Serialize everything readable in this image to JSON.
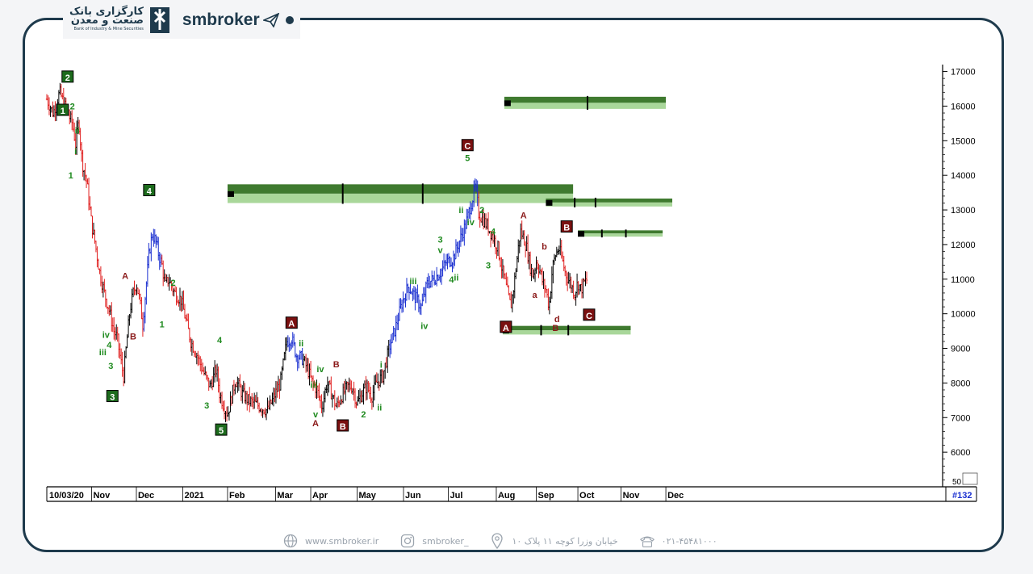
{
  "header": {
    "bank_name_fa": "کارگزاری بانک",
    "bank_name_fa2": "صنعت و معدن",
    "bank_name_en": "Bank of Industry & Mine Securities",
    "brand": "smbroker",
    "brand_icon": "paper-plane-icon"
  },
  "footer": {
    "website": "www.smbroker.ir",
    "instagram": "smbroker_",
    "address": "خیابان وزرا کوچه ۱۱ پلاک ۱۰",
    "phone": "۰۲۱-۴۵۴۸۱۰۰۰"
  },
  "colors": {
    "frame": "#1e3a4c",
    "up_candle": "#000000",
    "down_candle": "#e02020",
    "blue_candle": "#1a2fd0",
    "zone_dark": "#3f7a2f",
    "zone_light": "#a9d79a",
    "label_green": "#1f8a1f",
    "label_red": "#8b1a1a"
  },
  "chart_data": {
    "type": "candlestick",
    "title": "",
    "xlabel": "",
    "ylabel": "",
    "ylim": [
      5000,
      17200
    ],
    "y_ticks": [
      6000,
      7000,
      8000,
      9000,
      10000,
      11000,
      12000,
      13000,
      14000,
      15000,
      16000,
      17000
    ],
    "y_tick_labels": [
      "6000",
      "7000",
      "8000",
      "9000",
      "10000",
      "11000",
      "12000",
      "13000",
      "14000",
      "15000",
      "16000",
      "17000"
    ],
    "y_bottom_label": "50",
    "x_start_label": "10/03/20",
    "x_labels": [
      "Nov",
      "Dec",
      "2021",
      "Feb",
      "Mar",
      "Apr",
      "May",
      "Jun",
      "Jul",
      "Aug",
      "Sep",
      "Oct",
      "Nov",
      "Dec"
    ],
    "x_label_days": [
      29,
      57,
      86,
      114,
      144,
      166,
      195,
      224,
      252,
      282,
      307,
      333,
      360,
      388
    ],
    "x_range_days": [
      0,
      560
    ],
    "corner_label": "#132",
    "price_path": [
      [
        0,
        16200
      ],
      [
        4,
        15800
      ],
      [
        8,
        16400
      ],
      [
        12,
        15900
      ],
      [
        16,
        15500
      ],
      [
        18,
        14900
      ],
      [
        20,
        15600
      ],
      [
        22,
        14400
      ],
      [
        25,
        13800
      ],
      [
        28,
        12600
      ],
      [
        30,
        12100
      ],
      [
        33,
        11200
      ],
      [
        36,
        10600
      ],
      [
        39,
        10100
      ],
      [
        42,
        9500
      ],
      [
        44,
        9300
      ],
      [
        46,
        8700
      ],
      [
        48,
        8200
      ],
      [
        50,
        9200
      ],
      [
        52,
        10100
      ],
      [
        54,
        10600
      ],
      [
        56,
        10900
      ],
      [
        58,
        10400
      ],
      [
        60,
        9700
      ],
      [
        64,
        11800
      ],
      [
        66,
        12300
      ],
      [
        68,
        12100
      ],
      [
        70,
        11700
      ],
      [
        72,
        11400
      ],
      [
        74,
        10800
      ],
      [
        76,
        11000
      ],
      [
        80,
        10600
      ],
      [
        84,
        10400
      ],
      [
        86,
        10000
      ],
      [
        90,
        9200
      ],
      [
        94,
        8800
      ],
      [
        98,
        8300
      ],
      [
        102,
        7900
      ],
      [
        106,
        8400
      ],
      [
        108,
        7700
      ],
      [
        111,
        7300
      ],
      [
        113,
        7100
      ],
      [
        116,
        7700
      ],
      [
        118,
        8100
      ],
      [
        122,
        7700
      ],
      [
        126,
        7500
      ],
      [
        130,
        7400
      ],
      [
        134,
        7300
      ],
      [
        138,
        7200
      ],
      [
        142,
        7600
      ],
      [
        146,
        8000
      ],
      [
        150,
        9200
      ],
      [
        153,
        9300
      ],
      [
        156,
        8800
      ],
      [
        160,
        8700
      ],
      [
        163,
        8400
      ],
      [
        166,
        8000
      ],
      [
        169,
        7800
      ],
      [
        172,
        7300
      ],
      [
        175,
        8000
      ],
      [
        178,
        7700
      ],
      [
        181,
        7300
      ],
      [
        184,
        7600
      ],
      [
        188,
        7900
      ],
      [
        191,
        7900
      ],
      [
        194,
        7400
      ],
      [
        197,
        7700
      ],
      [
        200,
        7900
      ],
      [
        203,
        7600
      ],
      [
        206,
        8000
      ],
      [
        210,
        8200
      ],
      [
        214,
        9000
      ],
      [
        218,
        9600
      ],
      [
        222,
        10300
      ],
      [
        226,
        10800
      ],
      [
        230,
        10500
      ],
      [
        234,
        10200
      ],
      [
        238,
        10900
      ],
      [
        242,
        11000
      ],
      [
        246,
        11200
      ],
      [
        250,
        11500
      ],
      [
        254,
        11600
      ],
      [
        258,
        12100
      ],
      [
        262,
        12600
      ],
      [
        266,
        13300
      ],
      [
        268,
        13700
      ],
      [
        270,
        12900
      ],
      [
        273,
        12700
      ],
      [
        276,
        12500
      ],
      [
        279,
        12200
      ],
      [
        282,
        11900
      ],
      [
        284,
        11400
      ],
      [
        286,
        11000
      ],
      [
        288,
        10600
      ],
      [
        290,
        10200
      ],
      [
        292,
        10800
      ],
      [
        294,
        11600
      ],
      [
        296,
        12400
      ],
      [
        298,
        12200
      ],
      [
        300,
        11900
      ],
      [
        302,
        11400
      ],
      [
        304,
        11100
      ],
      [
        306,
        11500
      ],
      [
        308,
        11300
      ],
      [
        310,
        10900
      ],
      [
        312,
        10700
      ],
      [
        314,
        10200
      ],
      [
        316,
        11300
      ],
      [
        318,
        11700
      ],
      [
        320,
        11900
      ],
      [
        322,
        11600
      ],
      [
        324,
        11200
      ],
      [
        326,
        11000
      ],
      [
        328,
        10800
      ],
      [
        330,
        10600
      ],
      [
        332,
        10900
      ],
      [
        334,
        10700
      ],
      [
        336,
        10900
      ],
      [
        338,
        11000
      ]
    ],
    "bands": [
      {
        "day_from": 113,
        "day_to": 329,
        "y_top": 13740,
        "y_bottom": 13200,
        "markers": [
          185,
          235
        ]
      },
      {
        "day_from": 286,
        "day_to": 387,
        "y_top": 16270,
        "y_bottom": 15920,
        "markers": [
          338
        ]
      },
      {
        "day_from": 312,
        "day_to": 391,
        "y_top": 13330,
        "y_bottom": 13100,
        "markers": [
          330,
          343
        ]
      },
      {
        "day_from": 332,
        "day_to": 385,
        "y_top": 12410,
        "y_bottom": 12230,
        "markers": [
          347,
          362
        ]
      },
      {
        "day_from": 285,
        "day_to": 365,
        "y_top": 9650,
        "y_bottom": 9400,
        "markers": [
          309,
          326
        ]
      }
    ],
    "labels": [
      {
        "text": "2",
        "day": 13,
        "y": 16830,
        "style": "box-green"
      },
      {
        "text": "1",
        "day": 10,
        "y": 15870,
        "style": "box-green"
      },
      {
        "text": "2",
        "day": 16,
        "y": 16000,
        "style": "green"
      },
      {
        "text": "ii",
        "day": 19,
        "y": 15300,
        "style": "green"
      },
      {
        "text": "i",
        "day": 18,
        "y": 14700,
        "style": "green"
      },
      {
        "text": "1",
        "day": 15,
        "y": 14000,
        "style": "green"
      },
      {
        "text": "4",
        "day": 64,
        "y": 13550,
        "style": "box-green"
      },
      {
        "text": "A",
        "day": 49,
        "y": 11100,
        "style": "red"
      },
      {
        "text": "B",
        "day": 54,
        "y": 9350,
        "style": "red"
      },
      {
        "text": "iv",
        "day": 37,
        "y": 9400,
        "style": "green"
      },
      {
        "text": "4",
        "day": 39,
        "y": 9100,
        "style": "green"
      },
      {
        "text": "iii",
        "day": 35,
        "y": 8900,
        "style": "green"
      },
      {
        "text": "3",
        "day": 40,
        "y": 8500,
        "style": "green"
      },
      {
        "text": "3",
        "day": 41,
        "y": 7600,
        "style": "box-green"
      },
      {
        "text": "1",
        "day": 72,
        "y": 9700,
        "style": "green"
      },
      {
        "text": "2",
        "day": 79,
        "y": 10900,
        "style": "green"
      },
      {
        "text": "4",
        "day": 108,
        "y": 9250,
        "style": "green"
      },
      {
        "text": "3",
        "day": 100,
        "y": 7360,
        "style": "green"
      },
      {
        "text": "5",
        "day": 109,
        "y": 6630,
        "style": "box-green"
      },
      {
        "text": "A",
        "day": 153,
        "y": 9720,
        "style": "box-red"
      },
      {
        "text": "ii",
        "day": 159,
        "y": 9150,
        "style": "green"
      },
      {
        "text": "iv",
        "day": 171,
        "y": 8400,
        "style": "green"
      },
      {
        "text": "iii",
        "day": 167,
        "y": 7950,
        "style": "green"
      },
      {
        "text": "v",
        "day": 168,
        "y": 7100,
        "style": "green"
      },
      {
        "text": "A",
        "day": 168,
        "y": 6840,
        "style": "red"
      },
      {
        "text": "B",
        "day": 181,
        "y": 8550,
        "style": "red"
      },
      {
        "text": "B",
        "day": 185,
        "y": 6750,
        "style": "box-red"
      },
      {
        "text": "2",
        "day": 198,
        "y": 7100,
        "style": "green"
      },
      {
        "text": "ii",
        "day": 208,
        "y": 7300,
        "style": "green"
      },
      {
        "text": "i",
        "day": 209,
        "y": 8530,
        "style": "green"
      },
      {
        "text": "iii",
        "day": 229,
        "y": 10950,
        "style": "green"
      },
      {
        "text": "iv",
        "day": 236,
        "y": 9650,
        "style": "green"
      },
      {
        "text": "3",
        "day": 246,
        "y": 12150,
        "style": "green"
      },
      {
        "text": "v",
        "day": 246,
        "y": 11850,
        "style": "green"
      },
      {
        "text": "4",
        "day": 253,
        "y": 11000,
        "style": "green"
      },
      {
        "text": "ii",
        "day": 256,
        "y": 11050,
        "style": "green"
      },
      {
        "text": "C",
        "day": 263,
        "y": 14850,
        "style": "box-red"
      },
      {
        "text": "5",
        "day": 263,
        "y": 14500,
        "style": "green"
      },
      {
        "text": "ii",
        "day": 259,
        "y": 13000,
        "style": "green"
      },
      {
        "text": "iv",
        "day": 265,
        "y": 12650,
        "style": "green"
      },
      {
        "text": "2",
        "day": 272,
        "y": 13000,
        "style": "green"
      },
      {
        "text": "4",
        "day": 279,
        "y": 12380,
        "style": "green"
      },
      {
        "text": "3",
        "day": 276,
        "y": 11400,
        "style": "green"
      },
      {
        "text": "A",
        "day": 287,
        "y": 9600,
        "style": "box-red"
      },
      {
        "text": "A",
        "day": 298,
        "y": 12850,
        "style": "red"
      },
      {
        "text": "b",
        "day": 311,
        "y": 11950,
        "style": "red"
      },
      {
        "text": "a",
        "day": 305,
        "y": 10550,
        "style": "red"
      },
      {
        "text": "B",
        "day": 325,
        "y": 12500,
        "style": "box-red"
      },
      {
        "text": "d",
        "day": 319,
        "y": 9850,
        "style": "red"
      },
      {
        "text": "B",
        "day": 318,
        "y": 9600,
        "style": "red"
      },
      {
        "text": "C",
        "day": 339,
        "y": 9950,
        "style": "box-red"
      }
    ]
  }
}
